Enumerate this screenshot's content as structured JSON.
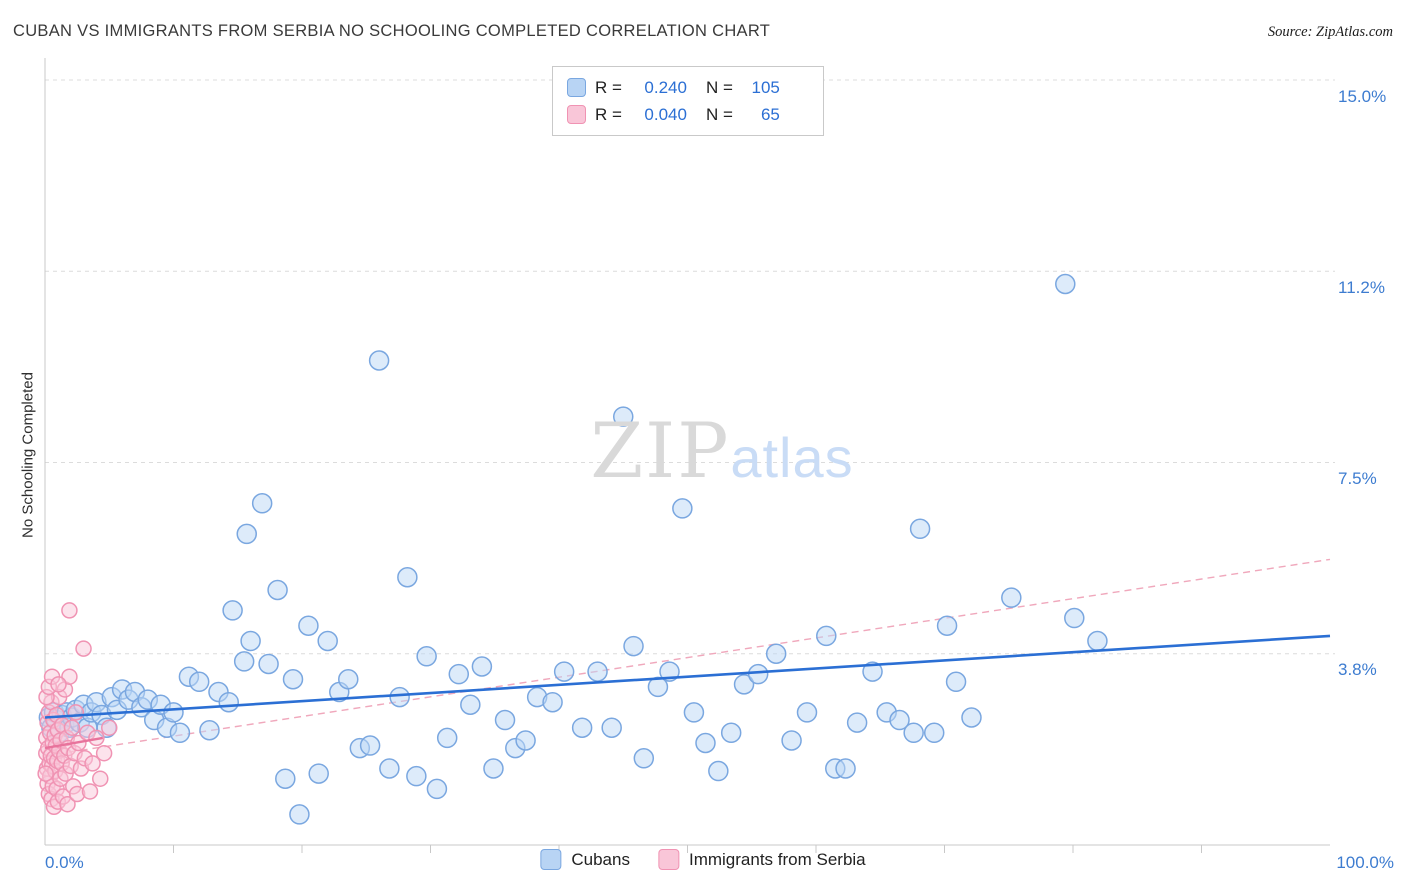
{
  "header": {
    "title": "CUBAN VS IMMIGRANTS FROM SERBIA NO SCHOOLING COMPLETED CORRELATION CHART",
    "source": "Source: ZipAtlas.com"
  },
  "watermark": {
    "zip": "ZIP",
    "atlas": "atlas"
  },
  "axes": {
    "y_label": "No Schooling Completed",
    "x_min_label": "0.0%",
    "x_max_label": "100.0%",
    "y_tick_labels": [
      "15.0%",
      "11.2%",
      "7.5%",
      "3.8%"
    ]
  },
  "legend_box": {
    "rows": [
      {
        "r_label": "R =",
        "r_value": "0.240",
        "n_label": "N =",
        "n_value": "105"
      },
      {
        "r_label": "R =",
        "r_value": "0.040",
        "n_label": "N =",
        "n_value": "65"
      }
    ]
  },
  "bottom_legend": {
    "cubans": "Cubans",
    "serbia": "Immigrants from Serbia"
  },
  "colors": {
    "accent_blue": "#2b6fd4",
    "label_blue": "#3d7cd0",
    "grid": "#dcdcdc",
    "axis": "#c8c8c8"
  },
  "chart_data": {
    "type": "scatter",
    "title": "Cuban vs Immigrants from Serbia No Schooling Completed",
    "xlabel": "",
    "ylabel": "No Schooling Completed",
    "xlim": [
      0,
      100
    ],
    "ylim": [
      0,
      15.4
    ],
    "grid": true,
    "gridlines": [
      3.75,
      7.5,
      11.25,
      15.0
    ],
    "x_ticks": [
      10,
      20,
      30,
      40,
      50,
      60,
      70,
      80,
      90
    ],
    "legend_position": "top-center",
    "series": [
      {
        "name": "Cubans",
        "r": 0.24,
        "n": 105,
        "stroke": "#7aa7e0",
        "fill": "#bcd7f5",
        "radius": 9.5,
        "trend": {
          "style": "solid",
          "x": [
            0,
            100
          ],
          "y": [
            2.5,
            4.1
          ],
          "color": "#2b6fd4",
          "width": 2.6
        },
        "points": [
          [
            0.3,
            2.5
          ],
          [
            0.5,
            2.3
          ],
          [
            0.7,
            2.6
          ],
          [
            0.9,
            2.45
          ],
          [
            1.1,
            2.2
          ],
          [
            1.3,
            2.55
          ],
          [
            1.5,
            2.35
          ],
          [
            1.7,
            2.6
          ],
          [
            1.9,
            2.3
          ],
          [
            2.1,
            2.5
          ],
          [
            2.4,
            2.65
          ],
          [
            2.7,
            2.4
          ],
          [
            3.0,
            2.75
          ],
          [
            3.3,
            2.3
          ],
          [
            3.6,
            2.6
          ],
          [
            4.0,
            2.8
          ],
          [
            4.4,
            2.55
          ],
          [
            4.8,
            2.3
          ],
          [
            5.2,
            2.9
          ],
          [
            5.6,
            2.65
          ],
          [
            6.0,
            3.05
          ],
          [
            6.5,
            2.85
          ],
          [
            7.0,
            3.0
          ],
          [
            7.5,
            2.7
          ],
          [
            8.0,
            2.85
          ],
          [
            8.5,
            2.45
          ],
          [
            9.0,
            2.75
          ],
          [
            9.5,
            2.3
          ],
          [
            10.0,
            2.6
          ],
          [
            10.5,
            2.2
          ],
          [
            11.2,
            3.3
          ],
          [
            12.0,
            3.2
          ],
          [
            12.8,
            2.25
          ],
          [
            13.5,
            3.0
          ],
          [
            14.3,
            2.8
          ],
          [
            14.6,
            4.6
          ],
          [
            15.5,
            3.6
          ],
          [
            16.0,
            4.0
          ],
          [
            15.7,
            6.1
          ],
          [
            16.9,
            6.7
          ],
          [
            17.4,
            3.55
          ],
          [
            18.1,
            5.0
          ],
          [
            18.7,
            1.3
          ],
          [
            19.3,
            3.25
          ],
          [
            19.8,
            0.6
          ],
          [
            20.5,
            4.3
          ],
          [
            21.3,
            1.4
          ],
          [
            22.0,
            4.0
          ],
          [
            22.9,
            3.0
          ],
          [
            23.6,
            3.25
          ],
          [
            24.5,
            1.9
          ],
          [
            25.3,
            1.95
          ],
          [
            26.0,
            9.5
          ],
          [
            26.8,
            1.5
          ],
          [
            27.6,
            2.9
          ],
          [
            28.2,
            5.25
          ],
          [
            28.9,
            1.35
          ],
          [
            29.7,
            3.7
          ],
          [
            30.5,
            1.1
          ],
          [
            31.3,
            2.1
          ],
          [
            32.2,
            3.35
          ],
          [
            33.1,
            2.75
          ],
          [
            34.0,
            3.5
          ],
          [
            34.9,
            1.5
          ],
          [
            35.8,
            2.45
          ],
          [
            36.6,
            1.9
          ],
          [
            37.4,
            2.05
          ],
          [
            38.3,
            2.9
          ],
          [
            39.5,
            2.8
          ],
          [
            40.4,
            3.4
          ],
          [
            41.8,
            2.3
          ],
          [
            43.0,
            3.4
          ],
          [
            44.1,
            2.3
          ],
          [
            45.0,
            8.4
          ],
          [
            45.8,
            3.9
          ],
          [
            46.6,
            1.7
          ],
          [
            47.7,
            3.1
          ],
          [
            48.6,
            3.4
          ],
          [
            49.6,
            6.6
          ],
          [
            50.5,
            2.6
          ],
          [
            51.4,
            2.0
          ],
          [
            52.4,
            1.45
          ],
          [
            53.4,
            2.2
          ],
          [
            54.4,
            3.15
          ],
          [
            55.5,
            3.35
          ],
          [
            56.9,
            3.75
          ],
          [
            58.1,
            2.05
          ],
          [
            59.3,
            2.6
          ],
          [
            60.8,
            4.1
          ],
          [
            61.5,
            1.5
          ],
          [
            62.3,
            1.5
          ],
          [
            63.2,
            2.4
          ],
          [
            64.4,
            3.4
          ],
          [
            65.5,
            2.6
          ],
          [
            66.5,
            2.45
          ],
          [
            67.6,
            2.2
          ],
          [
            68.1,
            6.2
          ],
          [
            69.2,
            2.2
          ],
          [
            70.2,
            4.3
          ],
          [
            70.9,
            3.2
          ],
          [
            72.1,
            2.5
          ],
          [
            75.2,
            4.85
          ],
          [
            79.4,
            11.0
          ],
          [
            80.1,
            4.45
          ],
          [
            81.9,
            4.0
          ]
        ]
      },
      {
        "name": "Immigrants from Serbia",
        "r": 0.04,
        "n": 65,
        "stroke": "#f093b3",
        "fill": "#f9c8d9",
        "radius": 7.5,
        "trend": {
          "style": "dashed",
          "x": [
            0,
            100
          ],
          "y": [
            1.75,
            5.6
          ],
          "color": "#f0a8bc",
          "width": 1.4
        },
        "trend2": {
          "style": "solid",
          "x": [
            0,
            4.5
          ],
          "y": [
            1.9,
            2.1
          ],
          "color": "#e8739c",
          "width": 2.4
        },
        "points": [
          [
            0.1,
            1.8
          ],
          [
            0.1,
            2.1
          ],
          [
            0.15,
            1.5
          ],
          [
            0.2,
            2.4
          ],
          [
            0.2,
            1.2
          ],
          [
            0.25,
            1.9
          ],
          [
            0.3,
            2.6
          ],
          [
            0.3,
            1.0
          ],
          [
            0.35,
            1.6
          ],
          [
            0.4,
            2.2
          ],
          [
            0.4,
            1.35
          ],
          [
            0.45,
            1.75
          ],
          [
            0.5,
            2.8
          ],
          [
            0.5,
            0.9
          ],
          [
            0.55,
            1.55
          ],
          [
            0.6,
            2.0
          ],
          [
            0.6,
            1.15
          ],
          [
            0.65,
            2.45
          ],
          [
            0.7,
            1.7
          ],
          [
            0.7,
            0.75
          ],
          [
            0.75,
            2.15
          ],
          [
            0.8,
            1.45
          ],
          [
            0.85,
            1.95
          ],
          [
            0.9,
            2.55
          ],
          [
            0.9,
            1.1
          ],
          [
            0.95,
            1.65
          ],
          [
            1.0,
            2.25
          ],
          [
            1.0,
            0.85
          ],
          [
            1.1,
            1.85
          ],
          [
            1.1,
            2.9
          ],
          [
            1.2,
            1.3
          ],
          [
            1.2,
            2.05
          ],
          [
            1.3,
            1.6
          ],
          [
            1.35,
            2.35
          ],
          [
            1.4,
            0.95
          ],
          [
            1.5,
            1.75
          ],
          [
            1.55,
            3.05
          ],
          [
            1.6,
            1.4
          ],
          [
            1.7,
            2.1
          ],
          [
            1.75,
            0.8
          ],
          [
            1.8,
            1.9
          ],
          [
            1.9,
            3.3
          ],
          [
            1.9,
            4.6
          ],
          [
            2.0,
            1.55
          ],
          [
            2.1,
            2.3
          ],
          [
            2.2,
            1.15
          ],
          [
            2.3,
            1.8
          ],
          [
            2.4,
            2.6
          ],
          [
            2.5,
            1.0
          ],
          [
            2.6,
            2.0
          ],
          [
            2.8,
            1.5
          ],
          [
            3.0,
            3.85
          ],
          [
            3.1,
            1.7
          ],
          [
            3.3,
            2.2
          ],
          [
            3.5,
            1.05
          ],
          [
            3.7,
            1.6
          ],
          [
            4.0,
            2.1
          ],
          [
            4.3,
            1.3
          ],
          [
            4.6,
            1.8
          ],
          [
            5.0,
            2.3
          ],
          [
            0.05,
            1.4
          ],
          [
            0.12,
            2.9
          ],
          [
            0.3,
            3.1
          ],
          [
            0.55,
            3.3
          ],
          [
            1.05,
            3.15
          ]
        ]
      }
    ]
  }
}
